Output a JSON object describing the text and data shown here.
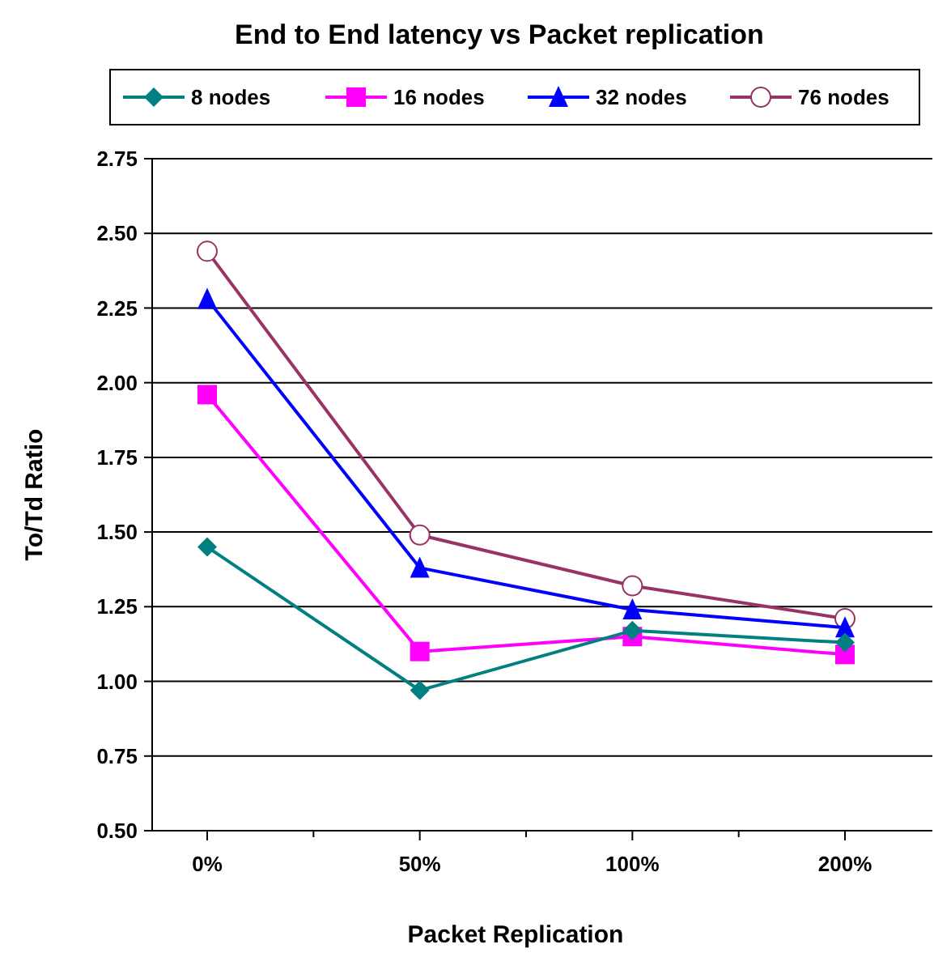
{
  "chart_data": {
    "type": "line",
    "title": "End to End latency vs Packet replication",
    "xlabel": "Packet Replication",
    "ylabel": "To/Td Ratio",
    "categories": [
      "0%",
      "50%",
      "100%",
      "200%"
    ],
    "series": [
      {
        "name": "8 nodes",
        "color": "#008080",
        "marker": "diamond",
        "values": [
          1.45,
          0.97,
          1.17,
          1.13
        ]
      },
      {
        "name": "16 nodes",
        "color": "#ff00ff",
        "marker": "square",
        "values": [
          1.96,
          1.1,
          1.15,
          1.09
        ]
      },
      {
        "name": "32 nodes",
        "color": "#0000ff",
        "marker": "triangle",
        "values": [
          2.28,
          1.38,
          1.24,
          1.18
        ]
      },
      {
        "name": "76 nodes",
        "color": "#993366",
        "marker": "circle",
        "values": [
          2.44,
          1.49,
          1.32,
          1.21
        ]
      }
    ],
    "ylim": [
      0.5,
      2.75
    ],
    "yticks": [
      {
        "value": 0.5,
        "label": "0.50"
      },
      0.75,
      {
        "value": 1,
        "label": "1.00"
      },
      1.25,
      {
        "value": 1.5,
        "label": "1.50"
      },
      1.75,
      {
        "value": 2,
        "label": "2.00"
      },
      2.25,
      {
        "value": 2.5,
        "label": "2.50"
      },
      2.75
    ],
    "grid": "y",
    "legend": "top",
    "line_style": "solid"
  }
}
